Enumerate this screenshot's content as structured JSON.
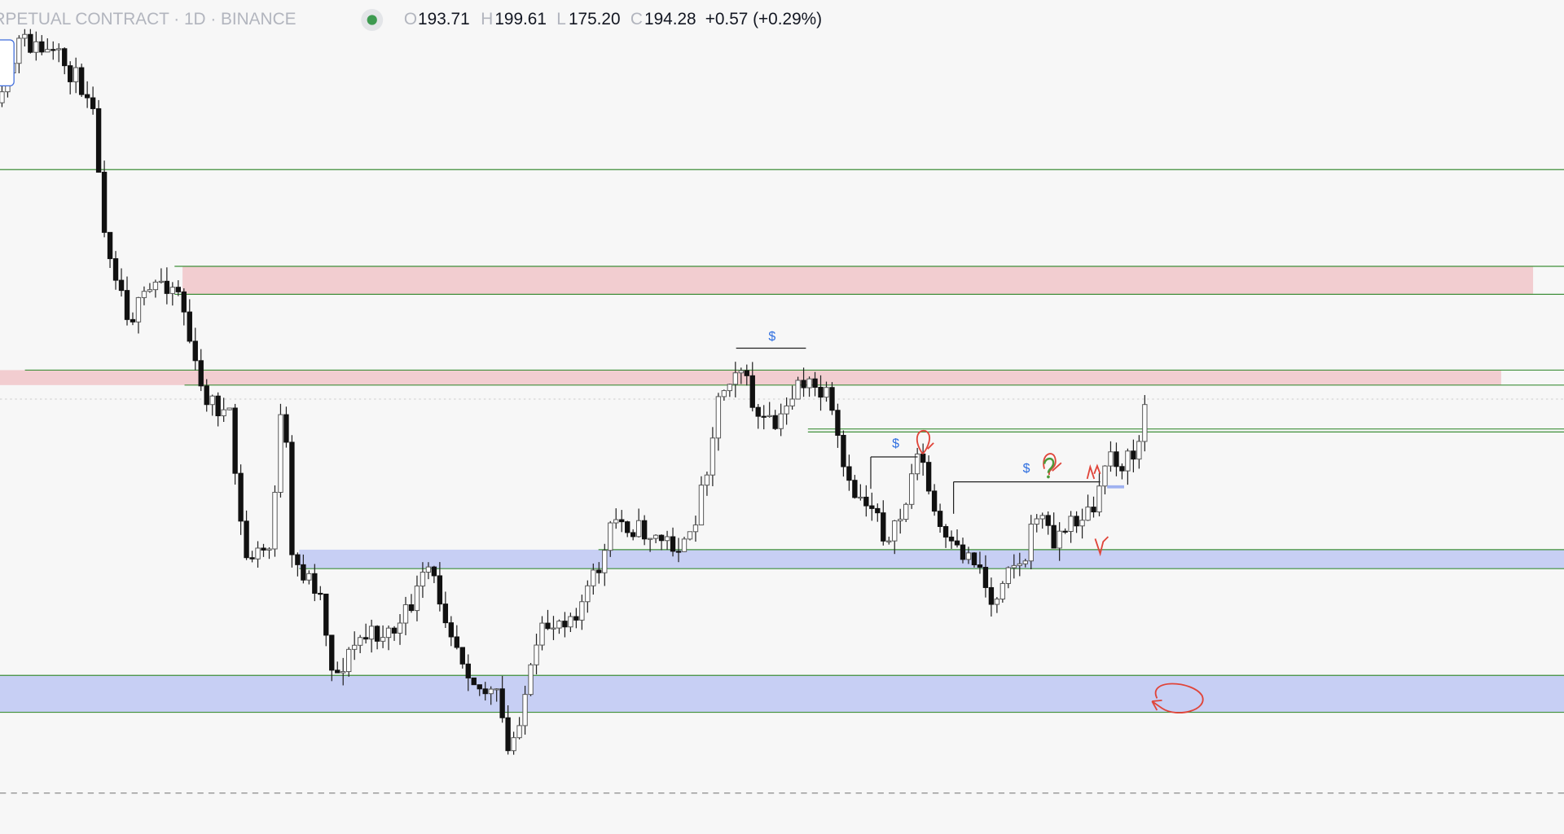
{
  "header": {
    "symbol": "RPETUAL CONTRACT · 1D · BINANCE",
    "ohlc": [
      {
        "label": "O",
        "value": "193.71"
      },
      {
        "label": "H",
        "value": "199.61"
      },
      {
        "label": "L",
        "value": "175.20"
      },
      {
        "label": "C",
        "value": "194.28"
      }
    ],
    "change": "+0.57 (+0.29%)"
  },
  "annotations": [
    "$",
    "$",
    "$"
  ]
}
